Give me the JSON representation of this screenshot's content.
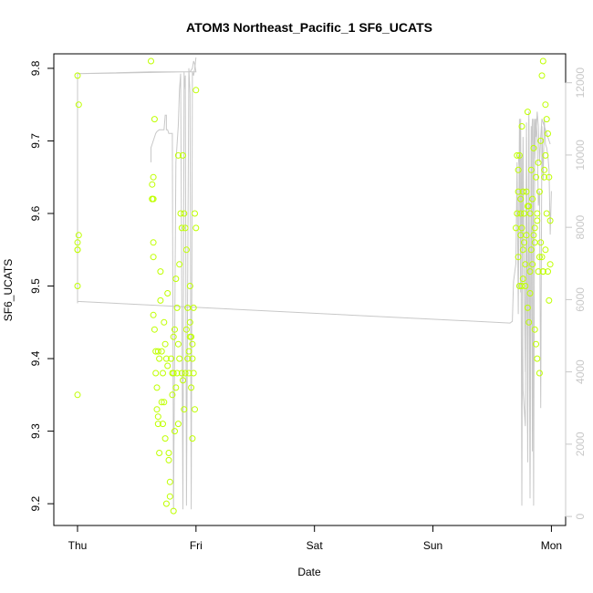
{
  "chart_data": {
    "type": "scatter",
    "title": "ATOM3 Northeast_Pacific_1 SF6_UCATS",
    "xlabel": "Date",
    "ylabel": "SF6_UCATS",
    "x_unit": "day index (Thu=0)",
    "xlim": [
      -0.2,
      4.12
    ],
    "x_ticks": [
      {
        "value": 0,
        "label": "Thu"
      },
      {
        "value": 1,
        "label": "Fri"
      },
      {
        "value": 2,
        "label": "Sat"
      },
      {
        "value": 3,
        "label": "Sun"
      },
      {
        "value": 4,
        "label": "Mon"
      }
    ],
    "ylim": [
      9.17,
      9.82
    ],
    "y_ticks": [
      9.2,
      9.3,
      9.4,
      9.5,
      9.6,
      9.7,
      9.8
    ],
    "y2lim": [
      -250,
      12800
    ],
    "y2_ticks": [
      0,
      2000,
      4000,
      6000,
      8000,
      10000,
      12000
    ],
    "grid": false,
    "legend": "none",
    "colors": {
      "points": "#bfff00",
      "line": "#c8c8c8",
      "axes": "#000000",
      "right_axis": "#c8c8c8"
    },
    "series": [
      {
        "kind": "points",
        "axis": "left",
        "x": [
          0.0,
          0.01,
          0.01,
          0.0,
          0.0,
          0.0,
          0.0,
          0.0,
          0.62,
          0.64,
          0.63,
          0.64,
          0.63,
          0.64,
          0.65,
          0.63,
          0.64,
          0.64,
          0.66,
          0.65,
          0.66,
          0.67,
          0.67,
          0.68,
          0.68,
          0.69,
          0.69,
          0.7,
          0.7,
          0.71,
          0.72,
          0.72,
          0.73,
          0.73,
          0.74,
          0.74,
          0.75,
          0.75,
          0.76,
          0.76,
          0.77,
          0.77,
          0.78,
          0.78,
          0.79,
          0.8,
          0.8,
          0.81,
          0.81,
          0.82,
          0.82,
          0.83,
          0.83,
          0.84,
          0.84,
          0.85,
          0.85,
          0.86,
          0.86,
          0.87,
          0.88,
          0.88,
          0.89,
          0.89,
          0.9,
          0.9,
          0.91,
          0.91,
          0.92,
          0.92,
          0.93,
          0.93,
          0.94,
          0.94,
          0.95,
          0.95,
          0.96,
          0.96,
          0.97,
          0.97,
          0.98,
          0.98,
          0.99,
          0.99,
          1.0,
          1.0,
          0.95,
          0.97,
          0.85,
          0.81,
          0.71,
          0.68,
          3.7,
          3.71,
          3.72,
          3.72,
          3.73,
          3.73,
          3.74,
          3.74,
          3.75,
          3.75,
          3.76,
          3.76,
          3.77,
          3.77,
          3.78,
          3.78,
          3.79,
          3.79,
          3.8,
          3.8,
          3.81,
          3.81,
          3.82,
          3.82,
          3.83,
          3.83,
          3.84,
          3.84,
          3.85,
          3.85,
          3.86,
          3.86,
          3.87,
          3.87,
          3.88,
          3.88,
          3.89,
          3.89,
          3.9,
          3.9,
          3.91,
          3.91,
          3.92,
          3.92,
          3.93,
          3.93,
          3.94,
          3.94,
          3.95,
          3.95,
          3.96,
          3.96,
          3.97,
          3.97,
          3.98,
          3.98,
          3.99,
          3.99,
          3.72,
          3.74,
          3.76,
          3.8,
          3.82,
          3.86,
          3.88,
          3.9,
          3.93,
          3.95,
          3.71,
          3.75
        ],
        "y": [
          9.79,
          9.75,
          9.57,
          9.56,
          9.55,
          9.5,
          9.35,
          9.55,
          9.81,
          9.54,
          9.62,
          9.65,
          9.64,
          9.56,
          9.73,
          9.62,
          9.62,
          9.46,
          9.41,
          9.44,
          9.38,
          9.36,
          9.33,
          9.41,
          9.32,
          9.4,
          9.27,
          9.52,
          9.48,
          9.41,
          9.38,
          9.31,
          9.45,
          9.34,
          9.42,
          9.29,
          9.4,
          9.2,
          9.49,
          9.39,
          9.27,
          9.26,
          9.21,
          9.23,
          9.4,
          9.38,
          9.35,
          9.43,
          9.38,
          9.44,
          9.3,
          9.36,
          9.51,
          9.38,
          9.47,
          9.42,
          9.68,
          9.4,
          9.53,
          9.6,
          9.58,
          9.38,
          9.37,
          9.68,
          9.33,
          9.6,
          9.58,
          9.38,
          9.55,
          9.44,
          9.47,
          9.4,
          9.41,
          9.38,
          9.43,
          9.45,
          9.36,
          9.43,
          9.42,
          9.4,
          9.38,
          9.47,
          9.33,
          9.6,
          9.77,
          9.58,
          9.5,
          9.29,
          9.31,
          9.19,
          9.34,
          9.31,
          9.58,
          9.6,
          9.54,
          9.66,
          9.5,
          9.68,
          9.6,
          9.62,
          9.72,
          9.58,
          9.63,
          9.55,
          9.6,
          9.56,
          9.5,
          9.53,
          9.57,
          9.63,
          9.47,
          9.74,
          9.45,
          9.61,
          9.6,
          9.52,
          9.66,
          9.55,
          9.53,
          9.62,
          9.57,
          9.69,
          9.44,
          9.58,
          9.42,
          9.65,
          9.4,
          9.59,
          9.52,
          9.67,
          9.38,
          9.63,
          9.56,
          9.7,
          9.54,
          9.79,
          9.81,
          9.52,
          9.66,
          9.65,
          9.68,
          9.75,
          9.6,
          9.73,
          9.71,
          9.52,
          9.48,
          9.65,
          9.53,
          9.59,
          9.63,
          9.57,
          9.51,
          9.61,
          9.49,
          9.56,
          9.6,
          9.54,
          9.52,
          9.55,
          9.68,
          9.5
        ]
      },
      {
        "kind": "line",
        "axis": "right",
        "x": [
          0.0,
          0.0,
          0.0,
          0.0,
          0.62,
          0.62,
          0.63,
          0.66,
          0.67,
          0.72,
          0.73,
          0.74,
          0.75,
          0.76,
          0.77,
          0.78,
          0.8,
          0.81,
          0.82,
          0.84,
          0.87,
          0.88,
          0.89,
          0.91,
          0.92,
          0.93,
          0.94,
          0.95,
          0.96,
          0.97,
          0.98,
          0.99,
          1.0,
          1.0,
          0.99,
          0.98,
          0.97,
          0.96,
          0.95,
          0.94,
          0.93,
          0.92,
          0.91,
          0.9,
          0.0,
          0.0,
          0.0,
          0.0,
          3.65,
          3.67,
          3.68,
          3.7,
          3.71,
          3.72,
          3.73,
          3.74,
          3.75,
          3.76,
          3.78,
          3.79,
          3.8,
          3.81,
          3.82,
          3.83,
          3.84,
          3.85,
          3.86,
          3.87,
          3.88,
          3.89,
          3.9,
          3.91,
          3.92,
          3.93,
          3.94,
          3.95,
          3.96,
          3.97,
          3.98,
          3.99,
          4.0
        ],
        "y": [
          5900,
          6100,
          8000,
          12250,
          12300,
          12300,
          12300,
          12300,
          12300,
          12300,
          12300,
          12300,
          12300,
          12300,
          12300,
          12300,
          12300,
          12300,
          12300,
          12300,
          12300,
          12300,
          12300,
          12300,
          12300,
          12300,
          12300,
          12300,
          12300,
          12300,
          12300,
          12300,
          12300,
          12300,
          12500,
          12600,
          12400,
          12350,
          12300,
          12300,
          12300,
          12300,
          12300,
          12300,
          12250,
          8000,
          6200,
          5950,
          5350,
          5400,
          6500,
          7000,
          9800,
          5600,
          11000,
          6200,
          10000,
          3500,
          2500,
          10900,
          2300,
          11000,
          900,
          10800,
          1800,
          11000,
          9900,
          11000,
          10500,
          8600,
          9000,
          3000,
          10800,
          9300,
          11000,
          10300,
          10200,
          10000,
          9600,
          7800,
          9000
        ]
      },
      {
        "kind": "line",
        "axis": "right",
        "x": [
          0.62,
          0.62,
          0.63,
          0.65,
          0.66,
          0.67,
          0.69,
          0.7,
          0.73,
          0.74,
          0.75,
          0.75,
          0.76,
          0.77,
          0.8,
          0.81,
          0.83,
          0.85,
          0.86,
          0.87,
          0.89,
          0.9,
          0.9,
          0.91,
          0.92,
          0.94,
          0.95,
          0.96,
          0.97,
          0.98,
          0.99,
          1.0
        ],
        "y": [
          9800,
          10200,
          10300,
          10500,
          10600,
          10650,
          10700,
          10700,
          10700,
          11100,
          11100,
          10700,
          10700,
          10600,
          10600,
          200,
          9800,
          10800,
          11800,
          12250,
          200,
          12300,
          11800,
          12200,
          300,
          12400,
          11700,
          200,
          12300,
          12200,
          12400,
          12700
        ]
      },
      {
        "kind": "line",
        "axis": "right",
        "x": [
          3.72,
          3.73,
          3.74,
          3.75,
          3.76,
          3.77,
          3.78,
          3.79,
          3.8,
          3.81,
          3.82,
          3.83,
          3.84,
          3.85,
          3.86,
          3.87,
          3.88,
          3.89,
          3.9,
          3.91,
          3.92,
          3.93,
          3.94,
          3.95,
          3.96,
          3.97,
          3.98,
          3.99
        ],
        "y": [
          10000,
          9500,
          11000,
          300,
          10500,
          7000,
          4000,
          10500,
          1500,
          11200,
          500,
          10200,
          11000,
          300,
          11000,
          10500,
          11200,
          10800,
          9800,
          10500,
          11000,
          10900,
          10800,
          10700,
          10600,
          10500,
          10400,
          10300
        ]
      }
    ]
  }
}
